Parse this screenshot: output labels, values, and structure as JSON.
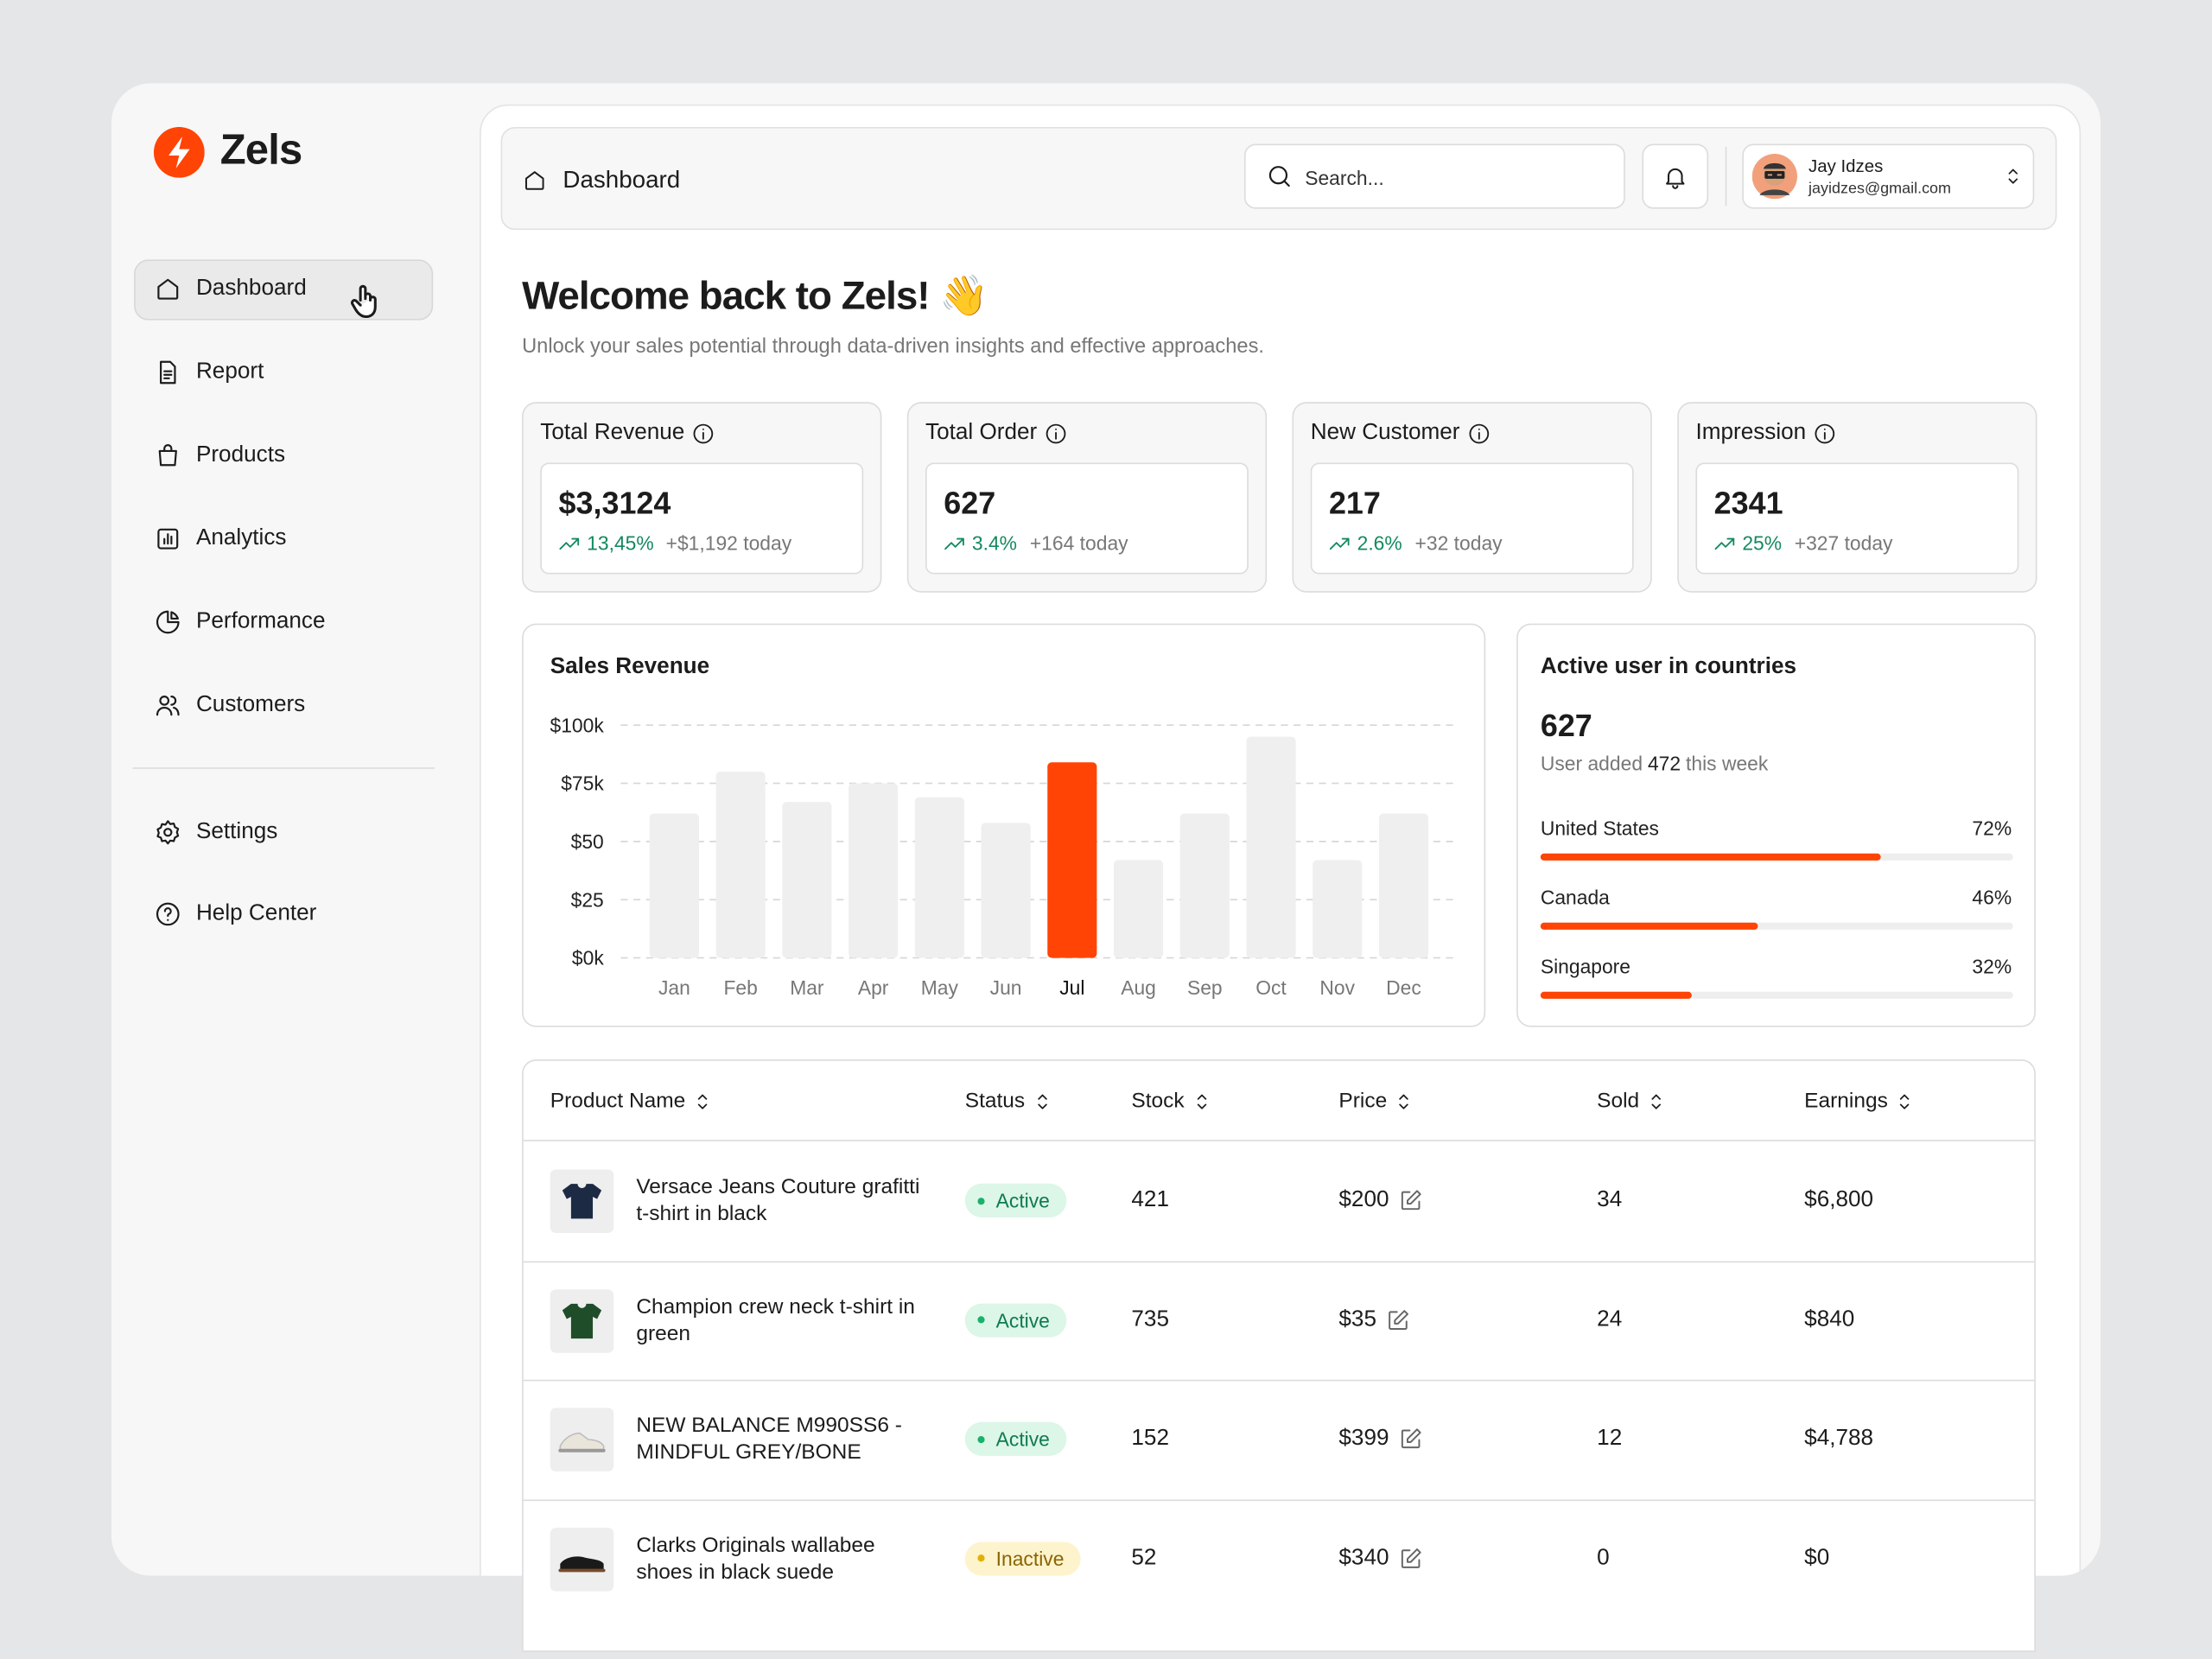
{
  "sidebar": {
    "brand": "Zels",
    "nav": [
      "Dashboard",
      "Report",
      "Products",
      "Analytics",
      "Performance",
      "Customers"
    ],
    "footer_nav": [
      "Settings",
      "Help Center"
    ]
  },
  "header": {
    "title": "Dashboard",
    "search_placeholder": "Search...",
    "user": {
      "name": "Jay Idzes",
      "email": "jayidzes@gmail.com"
    }
  },
  "welcome": {
    "title": "Welcome back to Zels! 👋",
    "subtitle": "Unlock your sales potential through data-driven insights and effective approaches."
  },
  "stats": [
    {
      "label": "Total Revenue",
      "value": "$3,3124",
      "change": "13,45%",
      "today": "+$1,192 today"
    },
    {
      "label": "Total Order",
      "value": "627",
      "change": "3.4%",
      "today": "+164 today"
    },
    {
      "label": "New Customer",
      "value": "217",
      "change": "2.6%",
      "today": "+32 today"
    },
    {
      "label": "Impression",
      "value": "2341",
      "change": "25%",
      "today": "+327 today"
    }
  ],
  "chart_data": {
    "type": "bar",
    "title": "Sales Revenue",
    "categories": [
      "Jan",
      "Feb",
      "Mar",
      "Apr",
      "May",
      "Jun",
      "Jul",
      "Aug",
      "Sep",
      "Oct",
      "Nov",
      "Dec"
    ],
    "values": [
      62,
      80,
      67,
      75,
      69,
      58,
      84,
      42,
      62,
      95,
      42,
      62
    ],
    "colors": [
      "#efefef",
      "#efefef",
      "#efefef",
      "#efefef",
      "#efefef",
      "#efefef",
      "#ff4405",
      "#efefef",
      "#efefef",
      "#efefef",
      "#efefef",
      "#efefef"
    ],
    "ylim": [
      0,
      100
    ],
    "yticks": [
      {
        "value": 0,
        "label": "$0k"
      },
      {
        "value": 25,
        "label": "$25"
      },
      {
        "value": 50,
        "label": "$50"
      },
      {
        "value": 75,
        "label": "$75k"
      },
      {
        "value": 100,
        "label": "$100k"
      }
    ],
    "grid": true
  },
  "countries": {
    "title": "Active user in countries",
    "total": "627",
    "note_before": "User added",
    "note_count": "472",
    "note_after": "this week",
    "color": "#ff4405",
    "items": [
      {
        "name": "United States",
        "value": 72,
        "label": "72%"
      },
      {
        "name": "Canada",
        "value": 46,
        "label": "46%"
      },
      {
        "name": "Singapore",
        "value": 32,
        "label": "32%"
      }
    ]
  },
  "table": {
    "columns": [
      "Product Name",
      "Status",
      "Stock",
      "Price",
      "Sold",
      "Earnings"
    ],
    "rows": [
      [
        "Versace Jeans Couture grafitti t-shirt in black",
        "Active",
        "421",
        "$200",
        "34",
        "$6,800"
      ],
      [
        "Champion crew neck t-shirt in green",
        "Active",
        "735",
        "$35",
        "24",
        "$840"
      ],
      [
        "NEW BALANCE M990SS6 - MINDFUL GREY/BONE",
        "Active",
        "152",
        "$399",
        "12",
        "$4,788"
      ],
      [
        "Clarks Originals wallabee shoes in black suede",
        "Inactive",
        "52",
        "$340",
        "0",
        "$0"
      ]
    ]
  }
}
